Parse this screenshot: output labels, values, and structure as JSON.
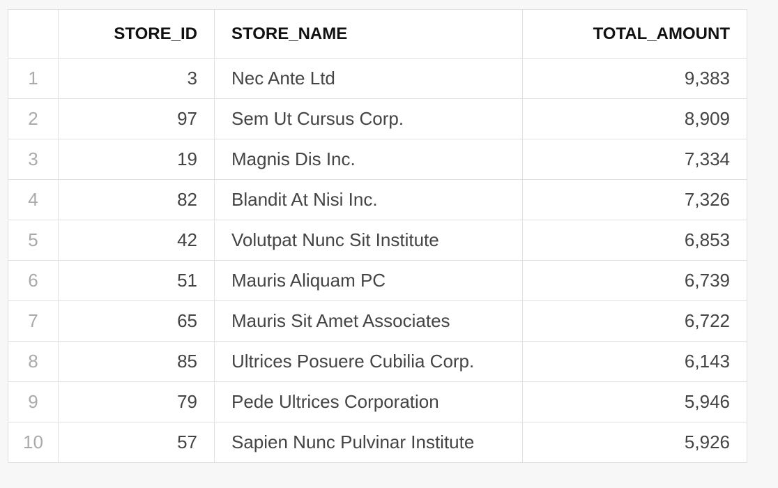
{
  "table": {
    "columns": [
      "",
      "STORE_ID",
      "STORE_NAME",
      "TOTAL_AMOUNT"
    ],
    "rows": [
      {
        "index": "1",
        "store_id": "3",
        "store_name": "Nec Ante Ltd",
        "total_amount": "9,383"
      },
      {
        "index": "2",
        "store_id": "97",
        "store_name": "Sem Ut Cursus Corp.",
        "total_amount": "8,909"
      },
      {
        "index": "3",
        "store_id": "19",
        "store_name": "Magnis Dis Inc.",
        "total_amount": "7,334"
      },
      {
        "index": "4",
        "store_id": "82",
        "store_name": "Blandit At Nisi Inc.",
        "total_amount": "7,326"
      },
      {
        "index": "5",
        "store_id": "42",
        "store_name": "Volutpat Nunc Sit Institute",
        "total_amount": "6,853"
      },
      {
        "index": "6",
        "store_id": "51",
        "store_name": "Mauris Aliquam PC",
        "total_amount": "6,739"
      },
      {
        "index": "7",
        "store_id": "65",
        "store_name": "Mauris Sit Amet Associates",
        "total_amount": "6,722"
      },
      {
        "index": "8",
        "store_id": "85",
        "store_name": "Ultrices Posuere Cubilia Corp.",
        "total_amount": "6,143"
      },
      {
        "index": "9",
        "store_id": "79",
        "store_name": "Pede Ultrices Corporation",
        "total_amount": "5,946"
      },
      {
        "index": "10",
        "store_id": "57",
        "store_name": "Sapien Nunc Pulvinar Institute",
        "total_amount": "5,926"
      }
    ]
  }
}
